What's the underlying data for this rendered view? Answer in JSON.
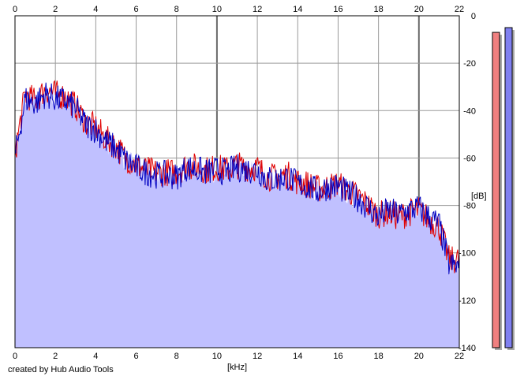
{
  "chart_data": {
    "type": "area",
    "xlabel": "[kHz]",
    "ylabel": "[dB]",
    "xlim": [
      0,
      22
    ],
    "ylim": [
      -140,
      0
    ],
    "x_ticks": [
      0,
      2,
      4,
      6,
      8,
      10,
      12,
      14,
      16,
      18,
      20,
      22
    ],
    "y_ticks": [
      0,
      -20,
      -40,
      -60,
      -80,
      -100,
      -120,
      -140
    ],
    "grid": true,
    "series": [
      {
        "color": "#e00000",
        "x": [
          0,
          0.5,
          1,
          1.5,
          2,
          2.5,
          3,
          3.5,
          4,
          4.5,
          5,
          5.5,
          6,
          6.5,
          7,
          7.5,
          8,
          8.5,
          9,
          9.5,
          10,
          10.5,
          11,
          11.5,
          12,
          12.5,
          13,
          13.5,
          14,
          14.5,
          15,
          15.5,
          16,
          16.5,
          17,
          17.5,
          18,
          18.5,
          19,
          19.5,
          20,
          20.5,
          21,
          21.5,
          22
        ],
        "values": [
          -58,
          -33,
          -36,
          -31,
          -33,
          -34,
          -38,
          -45,
          -47,
          -52,
          -55,
          -60,
          -63,
          -65,
          -66,
          -66,
          -66,
          -63,
          -64,
          -65,
          -64,
          -65,
          -63,
          -64,
          -64,
          -68,
          -68,
          -67,
          -70,
          -71,
          -73,
          -72,
          -71,
          -74,
          -76,
          -80,
          -84,
          -83,
          -85,
          -83,
          -82,
          -86,
          -89,
          -103,
          -103
        ]
      },
      {
        "color": "#0000c0",
        "x": [
          0,
          0.5,
          1,
          1.5,
          2,
          2.5,
          3,
          3.5,
          4,
          4.5,
          5,
          5.5,
          6,
          6.5,
          7,
          7.5,
          8,
          8.5,
          9,
          9.5,
          10,
          10.5,
          11,
          11.5,
          12,
          12.5,
          13,
          13.5,
          14,
          14.5,
          15,
          15.5,
          16,
          16.5,
          17,
          17.5,
          18,
          18.5,
          19,
          19.5,
          20,
          20.5,
          21,
          21.5,
          22
        ],
        "values": [
          -60,
          -35,
          -37,
          -33,
          -35,
          -36,
          -39,
          -46,
          -48,
          -53,
          -56,
          -61,
          -64,
          -66,
          -67,
          -67,
          -68,
          -64,
          -65,
          -66,
          -65,
          -66,
          -64,
          -65,
          -65,
          -69,
          -69,
          -68,
          -71,
          -72,
          -74,
          -72,
          -72,
          -75,
          -77,
          -81,
          -85,
          -82,
          -84,
          -82,
          -81,
          -85,
          -88,
          -105,
          -106
        ]
      }
    ],
    "fill_color": "#c0c0ff"
  },
  "meters": [
    {
      "color": "#f08080",
      "level": -7
    },
    {
      "color": "#8080f0",
      "level": -5
    }
  ],
  "credit": "created by Hub Audio Tools"
}
